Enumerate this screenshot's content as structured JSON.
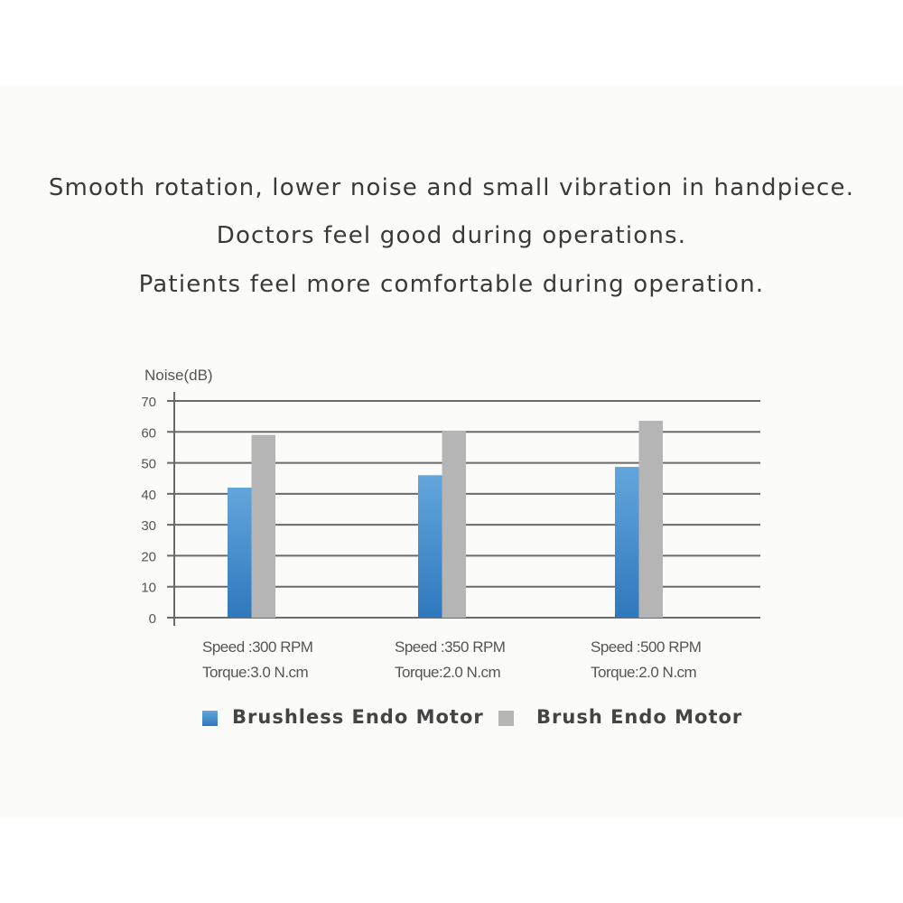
{
  "headline": [
    "Smooth rotation, lower noise and small vibration in handpiece.",
    "Doctors feel good during operations.",
    "Patients feel more comfortable during operation."
  ],
  "chart_data": {
    "type": "bar",
    "ylabel": "Noise(dB)",
    "ylim": [
      0,
      70
    ],
    "yticks": [
      0,
      10,
      20,
      30,
      40,
      50,
      60,
      70
    ],
    "grid": true,
    "categories": [
      [
        "Speed :300 RPM",
        "Torque:3.0 N.cm"
      ],
      [
        "Speed :350 RPM",
        "Torque:2.0 N.cm"
      ],
      [
        "Speed :500 RPM",
        "Torque:2.0 N.cm"
      ]
    ],
    "series": [
      {
        "name": "Brushless Endo Motor",
        "values": [
          42,
          46,
          48.7
        ],
        "color": "#3a86c8"
      },
      {
        "name": "Brush Endo Motor",
        "values": [
          59,
          60.4,
          63.6
        ],
        "color": "#b5b5b5"
      }
    ],
    "legend": "bottom"
  }
}
